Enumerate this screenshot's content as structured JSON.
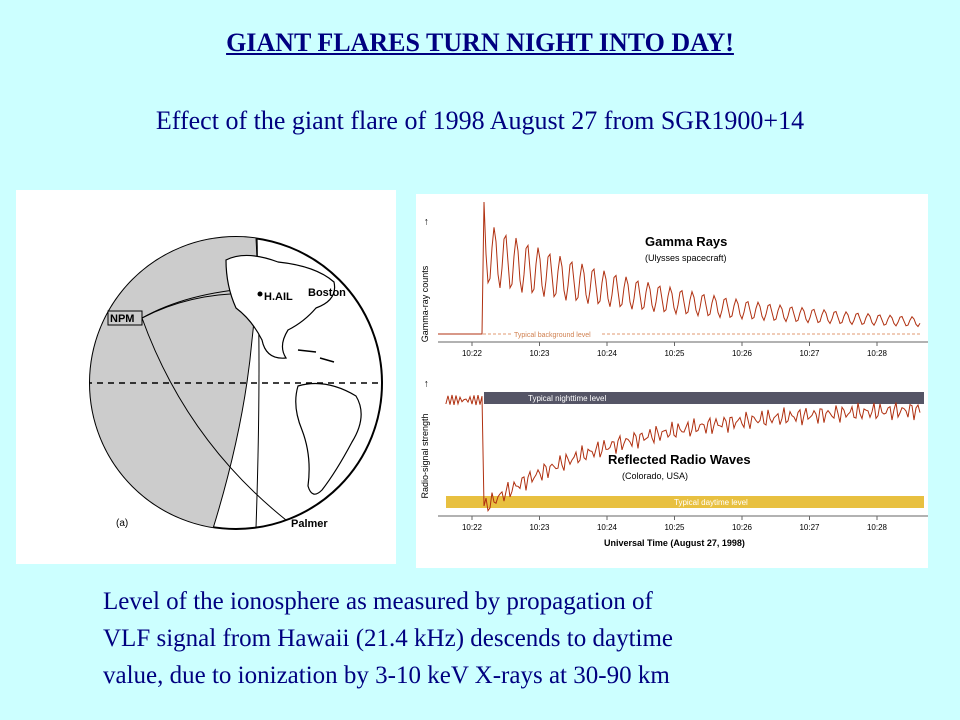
{
  "title": "GIANT FLARES TURN NIGHT INTO DAY!",
  "subtitle": "Effect of the giant flare of 1998 August 27 from SGR1900+14",
  "globe": {
    "labels": {
      "npm": "NPM",
      "hail": "H.AIL",
      "boston": "Boston",
      "palmer": "Palmer",
      "panel": "(a)"
    }
  },
  "chart": {
    "top": {
      "title": "Gamma Rays",
      "subtitle": "(Ulysses spacecraft)",
      "ylabel": "Gamma-ray counts",
      "band_label": "Typical background level",
      "ticks": [
        "10:22",
        "10:23",
        "10:24",
        "10:25",
        "10:26",
        "10:27",
        "10:28"
      ]
    },
    "bottom": {
      "title": "Reflected Radio Waves",
      "subtitle": "(Colorado, USA)",
      "ylabel": "Radio-signal strength",
      "night_label": "Typical nighttime level",
      "day_label": "Typical daytime level",
      "ticks": [
        "10:22",
        "10:23",
        "10:24",
        "10:25",
        "10:26",
        "10:27",
        "10:28"
      ],
      "xlabel": "Universal Time (August 27, 1998)"
    },
    "colors": {
      "trace": "#b03010",
      "night_band": "#555566",
      "day_band": "#e8c040"
    }
  },
  "caption": [
    "Level of the ionosphere as measured by propagation of",
    "VLF signal from Hawaii (21.4 kHz) descends to daytime",
    "value, due to ionization by 3-10 keV X-rays at 30-90 km"
  ]
}
